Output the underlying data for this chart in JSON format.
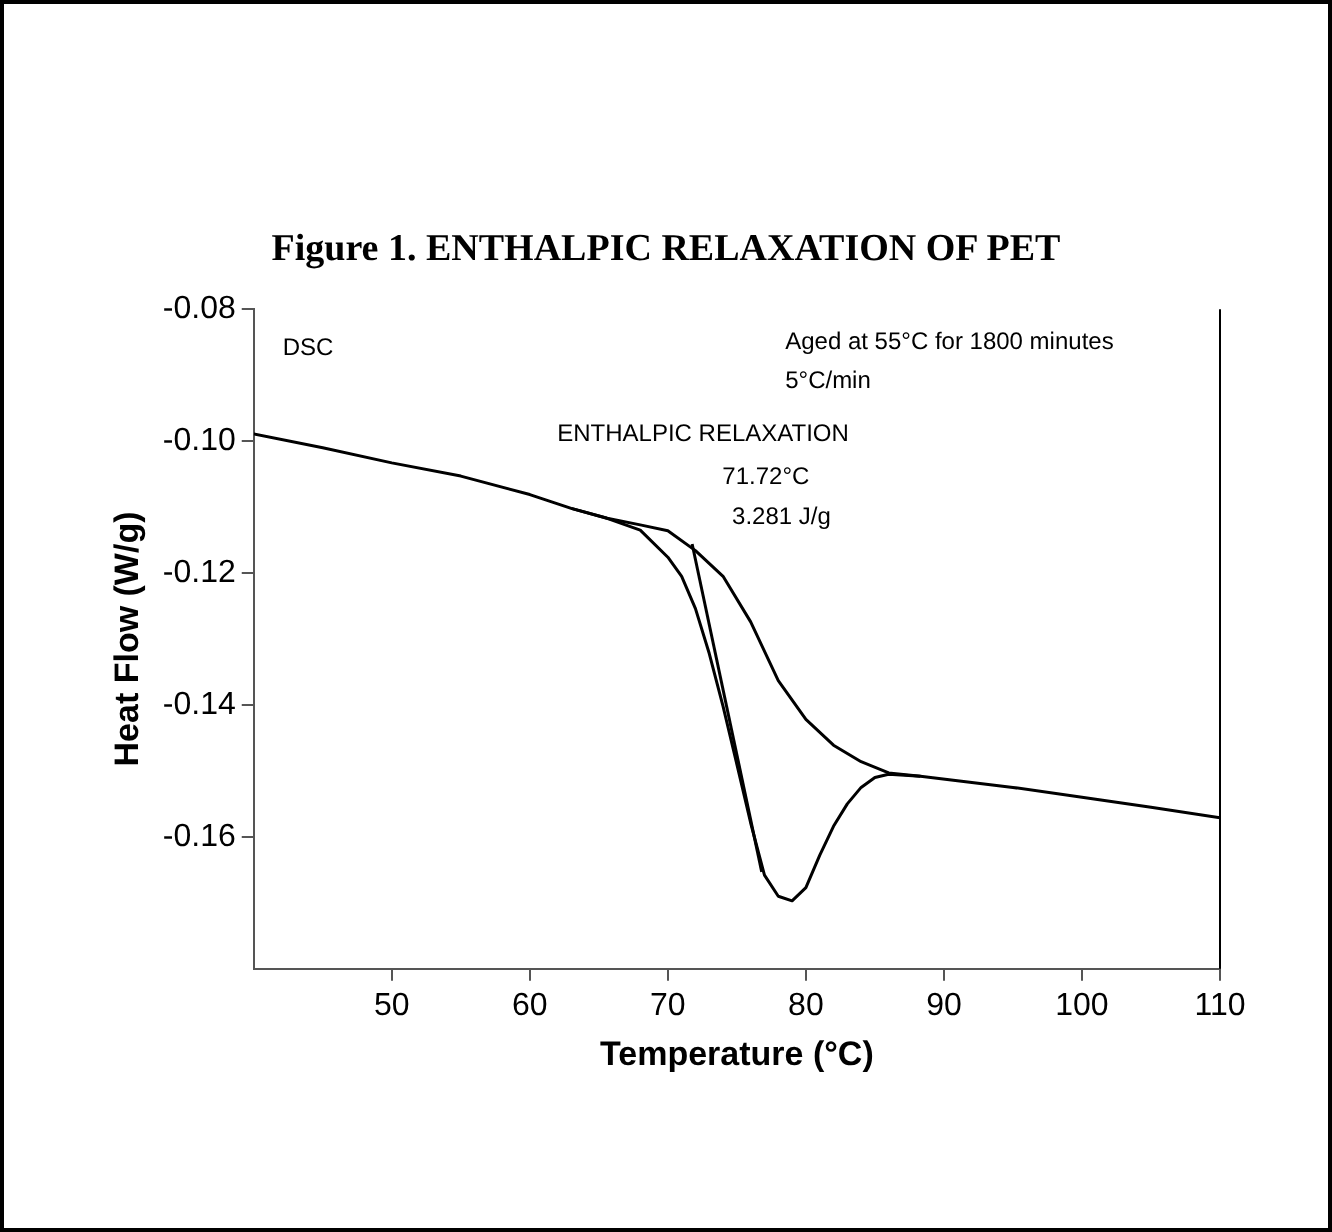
{
  "chart_data": {
    "type": "line",
    "title": "Figure 1. ENTHALPIC RELAXATION OF PET",
    "xlabel": "Temperature (°C)",
    "ylabel": "Heat Flow (W/g)",
    "xlim": [
      40,
      110
    ],
    "xticks": [
      50,
      60,
      70,
      80,
      90,
      100,
      110
    ],
    "ylim": [
      -0.18,
      -0.08
    ],
    "yticks": [
      -0.08,
      {
        "value": -0.1,
        "label": "-0.10"
      },
      -0.12,
      -0.14,
      -0.16
    ],
    "grid": false,
    "legend": false,
    "marker": "none",
    "line_style": "solid",
    "annotations": [
      "DSC",
      "Aged at 55°C for 1800 minutes",
      "5°C/min",
      "ENTHALPIC RELAXATION",
      "71.72°C",
      "3.281 J/g"
    ],
    "series": [
      {
        "color": "#000000",
        "x": [
          40,
          45,
          50,
          55,
          60,
          63,
          65.6,
          68,
          70,
          71,
          72,
          73,
          74,
          75,
          76,
          77,
          78,
          79,
          80,
          81,
          82,
          83,
          84,
          85,
          86,
          88.3,
          95,
          100,
          105,
          110
        ],
        "values": [
          -0.0989,
          -0.101,
          -0.1033,
          -0.1053,
          -0.1081,
          -0.1102,
          -0.1117,
          -0.1135,
          -0.1176,
          -0.1205,
          -0.1254,
          -0.1322,
          -0.1402,
          -0.149,
          -0.1579,
          -0.1658,
          -0.169,
          -0.1697,
          -0.1677,
          -0.1628,
          -0.1584,
          -0.155,
          -0.1525,
          -0.151,
          -0.1505,
          -0.1508,
          -0.1525,
          -0.154,
          -0.1555,
          -0.1571
        ]
      },
      {
        "color": "#000000",
        "x": [
          63,
          65.6,
          68,
          70,
          72,
          74,
          76,
          78,
          80,
          82,
          84,
          86,
          88.3
        ],
        "values": [
          -0.1102,
          -0.1117,
          -0.1127,
          -0.1136,
          -0.1166,
          -0.1205,
          -0.1274,
          -0.1363,
          -0.1422,
          -0.1461,
          -0.1486,
          -0.1503,
          -0.1508
        ]
      },
      {
        "color": "#000000",
        "x": [
          71.76,
          76.8
        ],
        "values": [
          -0.1156,
          -0.1653
        ]
      }
    ]
  }
}
